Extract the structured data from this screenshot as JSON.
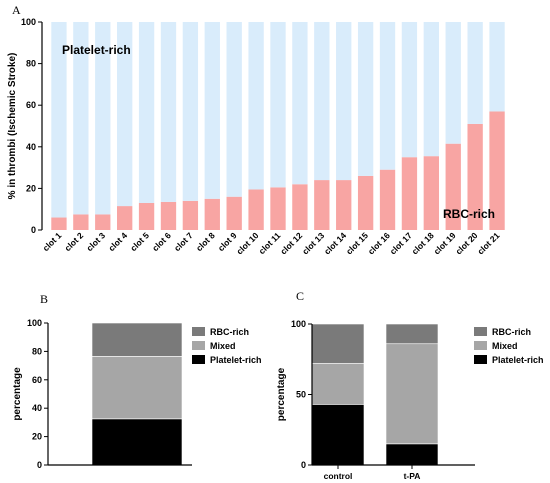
{
  "figure": {
    "panel_a": "A",
    "panel_b": "B",
    "panel_c": "C"
  },
  "colors": {
    "rbc_pink": "#f8a5a3",
    "platelet_blue": "#d9ecfb",
    "rbc_dark_gray": "#7a7a7a",
    "mixed_gray": "#a6a6a6",
    "platelet_black": "#000000"
  },
  "chart_data": [
    {
      "id": "A",
      "type": "bar",
      "stacked": true,
      "categories": [
        "clot 1",
        "clot 2",
        "clot 3",
        "clot 4",
        "clot 5",
        "clot 6",
        "clot 7",
        "clot 8",
        "clot 9",
        "clot 10",
        "clot 11",
        "clot 12",
        "clot 13",
        "clot 14",
        "clot 15",
        "clot 16",
        "clot 17",
        "clot 18",
        "clot 19",
        "clot 20",
        "clot 21"
      ],
      "series": [
        {
          "name": "RBC-rich",
          "color": "#f8a5a3",
          "values": [
            6,
            7.5,
            7.5,
            11.5,
            13,
            13.5,
            14,
            15,
            16,
            19.5,
            20.5,
            22,
            24,
            24,
            26,
            29,
            35,
            35.5,
            41.5,
            51,
            57
          ]
        },
        {
          "name": "Platelet-rich",
          "color": "#d9ecfb",
          "values": [
            94,
            92.5,
            92.5,
            88.5,
            87,
            86.5,
            86,
            85,
            84,
            80.5,
            79.5,
            78,
            76,
            76,
            74,
            71,
            65,
            64.5,
            58.5,
            49,
            43
          ]
        }
      ],
      "ylabel": "% in thrombi (Ischemic Stroke)",
      "ylim": [
        0,
        100
      ],
      "yticks": [
        0,
        20,
        40,
        60,
        80,
        100
      ],
      "annotations": [
        "Platelet-rich",
        "RBC-rich"
      ],
      "grid": false
    },
    {
      "id": "B",
      "type": "bar",
      "stacked": true,
      "categories": [
        ""
      ],
      "series": [
        {
          "name": "Platelet-rich",
          "color": "#000000",
          "values": [
            32.5
          ]
        },
        {
          "name": "Mixed",
          "color": "#a6a6a6",
          "values": [
            44
          ]
        },
        {
          "name": "RBC-rich",
          "color": "#7a7a7a",
          "values": [
            23.5
          ]
        }
      ],
      "ylabel": "percentage",
      "ylim": [
        0,
        100
      ],
      "yticks": [
        0,
        20,
        40,
        60,
        80,
        100
      ],
      "legend": [
        "RBC-rich",
        "Mixed",
        "Platelet-rich"
      ],
      "legend_position": "top-right",
      "grid": false
    },
    {
      "id": "C",
      "type": "bar",
      "stacked": true,
      "categories": [
        "control",
        "t-PA"
      ],
      "series": [
        {
          "name": "Platelet-rich",
          "color": "#000000",
          "values": [
            43,
            15
          ]
        },
        {
          "name": "Mixed",
          "color": "#a6a6a6",
          "values": [
            29,
            71
          ]
        },
        {
          "name": "RBC-rich",
          "color": "#7a7a7a",
          "values": [
            28,
            14
          ]
        }
      ],
      "ylabel": "percentage",
      "ylim": [
        0,
        100
      ],
      "yticks": [
        0,
        50,
        100
      ],
      "legend": [
        "RBC-rich",
        "Mixed",
        "Platelet-rich"
      ],
      "legend_position": "top-right",
      "grid": false
    }
  ]
}
